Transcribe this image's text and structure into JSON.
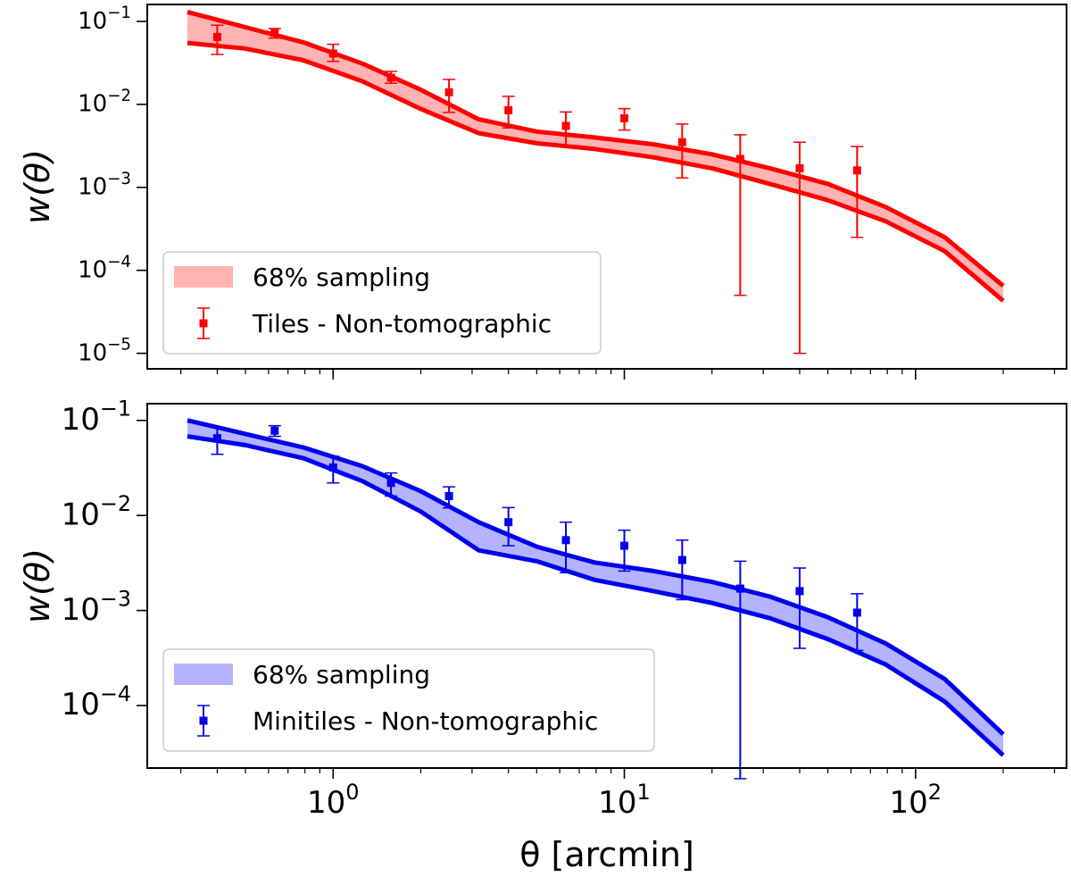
{
  "chart_data": [
    {
      "type": "line",
      "panel": "top",
      "ylabel": "w(θ)",
      "xlabel": "",
      "xscale": "log",
      "yscale": "log",
      "xlim": [
        0.23,
        330
      ],
      "ylim": [
        6.5e-06,
        0.16
      ],
      "color": "#ff0000",
      "fill_color": "#ffb3b3",
      "legend_position": "lower-left",
      "legend": {
        "band_label": "68% sampling",
        "points_label": "Tiles - Non-tomographic"
      },
      "yticks": [
        {
          "value": 0.1,
          "base": "10",
          "exp": "−1"
        },
        {
          "value": 0.01,
          "base": "10",
          "exp": "−2"
        },
        {
          "value": 0.001,
          "base": "10",
          "exp": "−3"
        },
        {
          "value": 0.0001,
          "base": "10",
          "exp": "−4"
        },
        {
          "value": 1e-05,
          "base": "10",
          "exp": "−5"
        }
      ],
      "band": {
        "x": [
          0.316,
          0.5,
          0.79,
          1.26,
          2.0,
          3.16,
          5.0,
          7.9,
          12.6,
          20,
          31.6,
          50,
          79,
          126,
          200
        ],
        "upper": [
          0.13,
          0.085,
          0.056,
          0.031,
          0.015,
          0.0066,
          0.0047,
          0.004,
          0.0033,
          0.0025,
          0.0017,
          0.0011,
          0.00058,
          0.00025,
          6.5e-05
        ],
        "lower": [
          0.055,
          0.047,
          0.034,
          0.019,
          0.0088,
          0.0045,
          0.0034,
          0.0029,
          0.0023,
          0.0017,
          0.0011,
          0.0007,
          0.00039,
          0.00017,
          4.3e-05
        ]
      },
      "points": {
        "x": [
          0.4,
          0.63,
          1.0,
          1.58,
          2.5,
          4.0,
          6.3,
          10,
          15.8,
          25,
          40,
          63
        ],
        "y": [
          0.065,
          0.073,
          0.041,
          0.021,
          0.014,
          0.0085,
          0.0055,
          0.0068,
          0.0035,
          0.0022,
          0.0017,
          0.0016
        ],
        "err_low": [
          0.04,
          0.063,
          0.033,
          0.018,
          0.008,
          0.0052,
          0.0031,
          0.0049,
          0.0013,
          5e-05,
          1e-05,
          0.00025
        ],
        "err_high": [
          0.09,
          0.082,
          0.053,
          0.025,
          0.02,
          0.0125,
          0.0081,
          0.0089,
          0.0058,
          0.0043,
          0.0035,
          0.0031
        ]
      }
    },
    {
      "type": "line",
      "panel": "bottom",
      "ylabel": "w(θ)",
      "xlabel": "θ [arcmin]",
      "xscale": "log",
      "yscale": "log",
      "xlim": [
        0.23,
        330
      ],
      "ylim": [
        2.2e-05,
        0.15
      ],
      "color": "#0000ee",
      "fill_color": "#b3b3ff",
      "legend_position": "lower-left",
      "legend": {
        "band_label": "68% sampling",
        "points_label": "Minitiles - Non-tomographic"
      },
      "yticks": [
        {
          "value": 0.1,
          "base": "10",
          "exp": "−1"
        },
        {
          "value": 0.01,
          "base": "10",
          "exp": "−2"
        },
        {
          "value": 0.001,
          "base": "10",
          "exp": "−3"
        },
        {
          "value": 0.0001,
          "base": "10",
          "exp": "−4"
        }
      ],
      "xticks": [
        {
          "value": 1,
          "base": "10",
          "exp": "0"
        },
        {
          "value": 10,
          "base": "10",
          "exp": "1"
        },
        {
          "value": 100,
          "base": "10",
          "exp": "2"
        }
      ],
      "band": {
        "x": [
          0.316,
          0.5,
          0.79,
          1.26,
          2.0,
          3.16,
          5.0,
          7.9,
          12.6,
          20,
          31.6,
          50,
          79,
          126,
          200
        ],
        "upper": [
          0.1,
          0.072,
          0.052,
          0.033,
          0.018,
          0.0085,
          0.0047,
          0.0032,
          0.0026,
          0.002,
          0.0014,
          0.00085,
          0.00045,
          0.00019,
          5e-05
        ],
        "lower": [
          0.068,
          0.055,
          0.04,
          0.023,
          0.011,
          0.0043,
          0.0033,
          0.0021,
          0.0016,
          0.0012,
          0.00083,
          0.0005,
          0.00027,
          0.00011,
          3e-05
        ]
      },
      "points": {
        "x": [
          0.4,
          0.63,
          1.0,
          1.58,
          2.5,
          4.0,
          6.3,
          10,
          15.8,
          25,
          40,
          63
        ],
        "y": [
          0.065,
          0.078,
          0.032,
          0.022,
          0.016,
          0.0085,
          0.0055,
          0.0048,
          0.0034,
          0.0017,
          0.0016,
          0.00095
        ],
        "err_low": [
          0.044,
          0.068,
          0.022,
          0.016,
          0.012,
          0.0048,
          0.0025,
          0.0026,
          0.0013,
          1.7e-05,
          0.0004,
          0.00038
        ],
        "err_high": [
          0.085,
          0.088,
          0.042,
          0.028,
          0.02,
          0.0121,
          0.0085,
          0.007,
          0.0055,
          0.0033,
          0.0028,
          0.0015
        ]
      }
    }
  ]
}
